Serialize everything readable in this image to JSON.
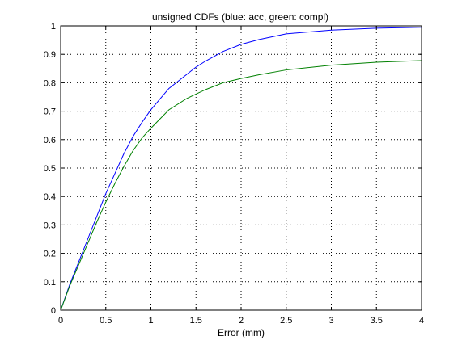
{
  "chart_data": {
    "type": "line",
    "title": "unsigned CDFs (blue: acc, green: compl)",
    "xlabel": "Error (mm)",
    "ylabel": "",
    "xlim": [
      0,
      4
    ],
    "ylim": [
      0,
      1
    ],
    "xticks": [
      0,
      0.5,
      1,
      1.5,
      2,
      2.5,
      3,
      3.5,
      4
    ],
    "xtick_labels": [
      "0",
      "0.5",
      "1",
      "1.5",
      "2",
      "2.5",
      "3",
      "3.5",
      "4"
    ],
    "yticks": [
      0,
      0.1,
      0.2,
      0.3,
      0.4,
      0.5,
      0.6,
      0.7,
      0.8,
      0.9,
      1
    ],
    "ytick_labels": [
      "0",
      "0.1",
      "0.2",
      "0.3",
      "0.4",
      "0.5",
      "0.6",
      "0.7",
      "0.8",
      "0.9",
      "1"
    ],
    "grid": true,
    "series": [
      {
        "color": "#0000ff",
        "x": [
          0,
          0.1,
          0.2,
          0.3,
          0.4,
          0.5,
          0.6,
          0.7,
          0.8,
          0.9,
          1.0,
          1.2,
          1.4,
          1.5,
          1.6,
          1.8,
          2.0,
          2.2,
          2.5,
          3.0,
          3.5,
          4.0
        ],
        "y": [
          0,
          0.09,
          0.17,
          0.25,
          0.33,
          0.41,
          0.48,
          0.55,
          0.61,
          0.66,
          0.705,
          0.78,
          0.83,
          0.855,
          0.875,
          0.91,
          0.935,
          0.952,
          0.972,
          0.985,
          0.992,
          0.995
        ]
      },
      {
        "color": "#008000",
        "x": [
          0,
          0.1,
          0.2,
          0.3,
          0.4,
          0.5,
          0.6,
          0.7,
          0.8,
          0.9,
          1.0,
          1.2,
          1.4,
          1.5,
          1.6,
          1.8,
          2.0,
          2.2,
          2.5,
          3.0,
          3.5,
          4.0
        ],
        "y": [
          0,
          0.085,
          0.16,
          0.235,
          0.31,
          0.38,
          0.445,
          0.505,
          0.56,
          0.605,
          0.64,
          0.705,
          0.745,
          0.76,
          0.775,
          0.8,
          0.815,
          0.828,
          0.845,
          0.862,
          0.872,
          0.878
        ]
      }
    ]
  }
}
